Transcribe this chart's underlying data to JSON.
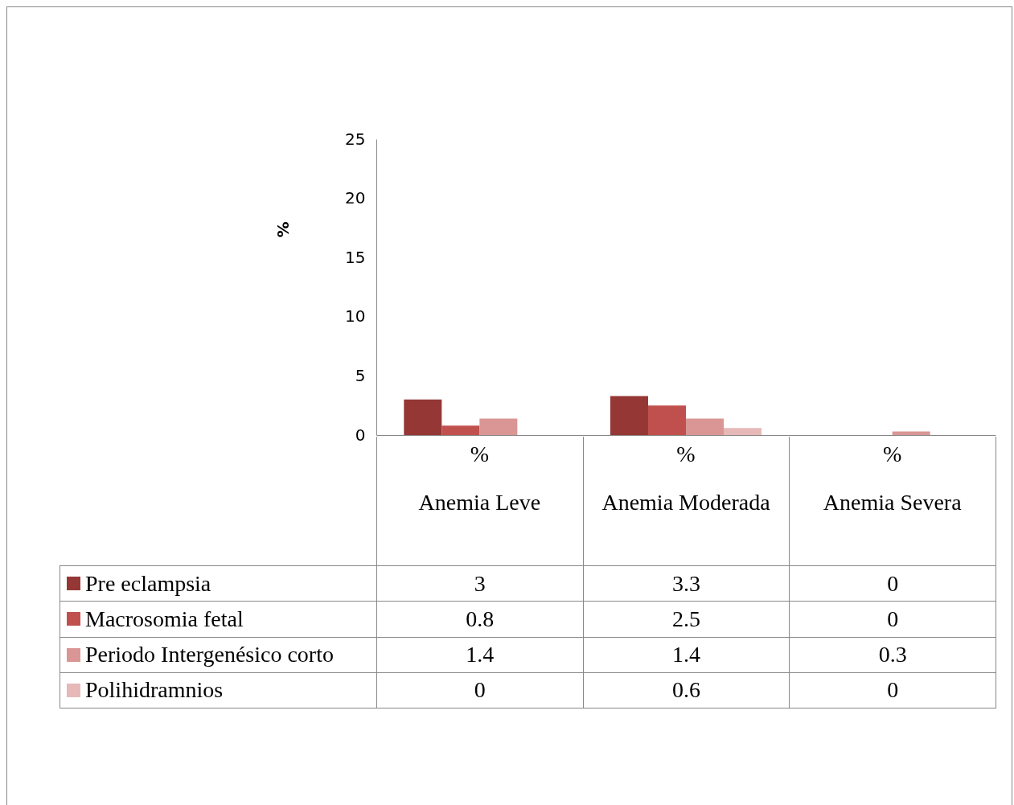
{
  "chart_data": {
    "type": "bar",
    "ylabel": "%",
    "categories": [
      "%\nAnemia Leve",
      "%\nAnemia Moderada",
      "%\nAnemia Severa"
    ],
    "series": [
      {
        "name": "Pre eclampsia",
        "color": "#953735",
        "values": [
          3,
          3.3,
          0
        ]
      },
      {
        "name": "Macrosomia fetal",
        "color": "#c0504d",
        "values": [
          0.8,
          2.5,
          0
        ]
      },
      {
        "name": "Periodo Intergenésico corto",
        "color": "#d99694",
        "values": [
          1.4,
          1.4,
          0.3
        ]
      },
      {
        "name": "Polihidramnios",
        "color": "#e6b9b8",
        "values": [
          0,
          0.6,
          0
        ]
      }
    ],
    "ylim": [
      0,
      25
    ],
    "yticks": [
      0,
      5,
      10,
      15,
      20,
      25
    ],
    "data_labels": true,
    "legend": "bottom left"
  }
}
